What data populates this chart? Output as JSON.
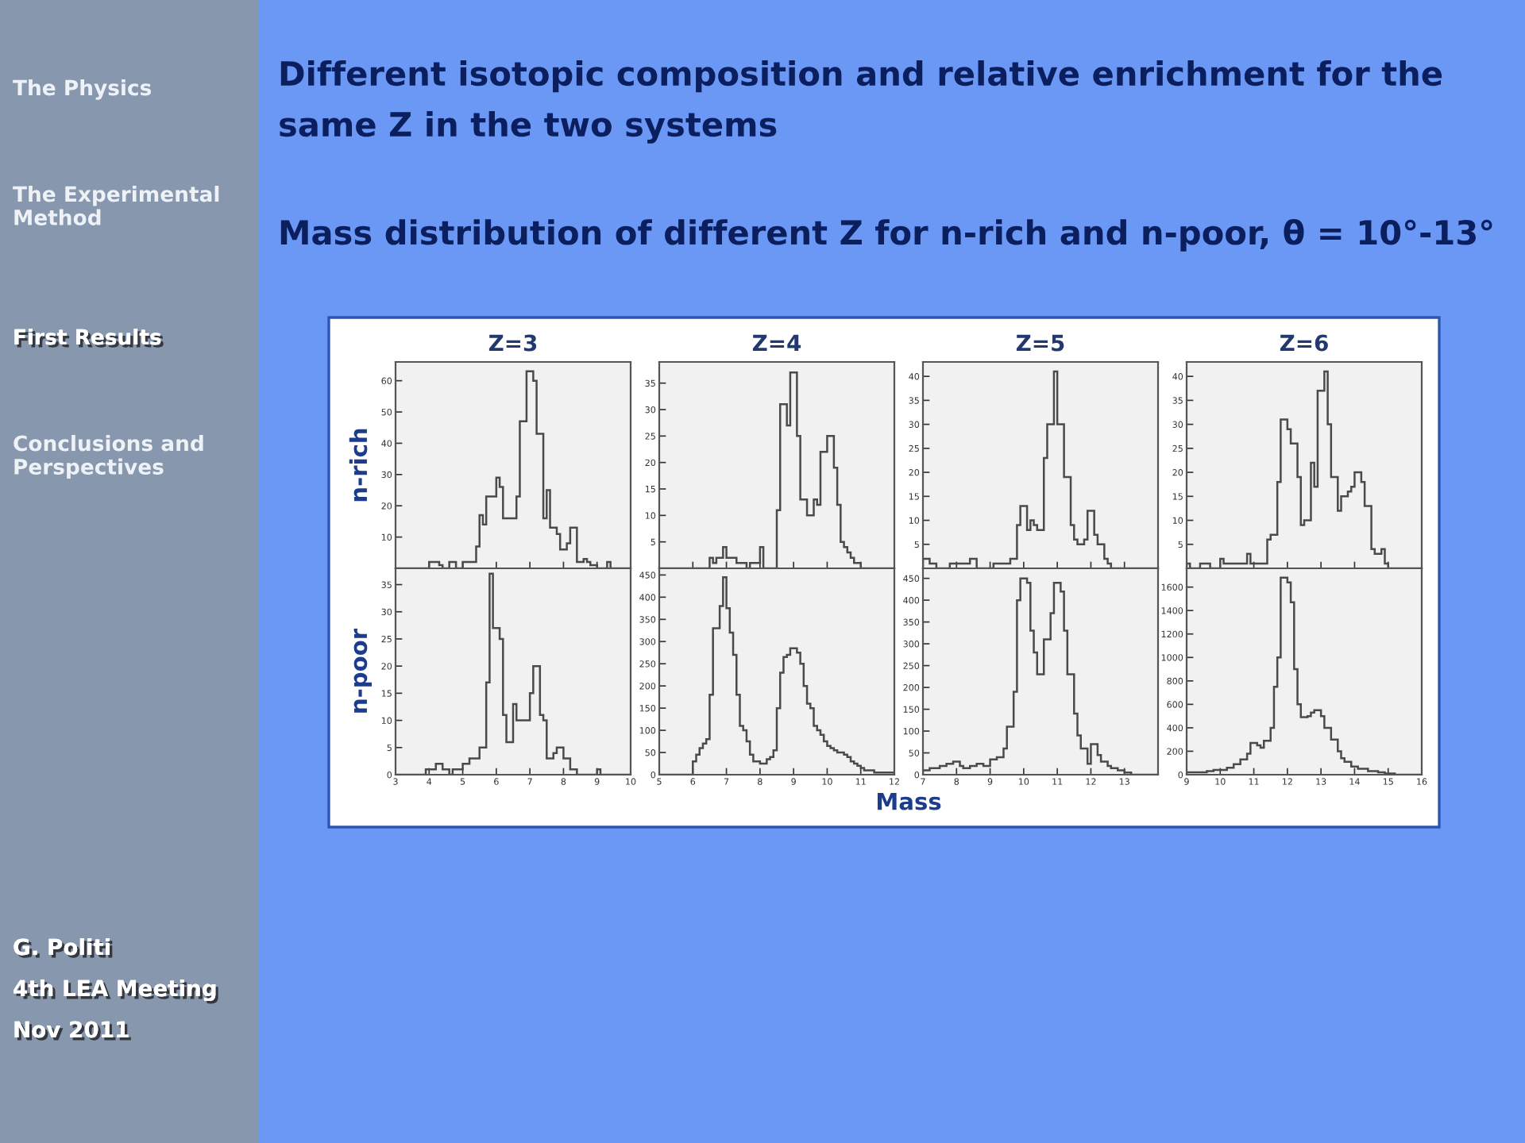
{
  "chart_data": [
    {
      "type": "histogram",
      "title": "Z=3",
      "ylabel": "n-rich",
      "color": "#4a4a4a",
      "tick_labels": "y",
      "xlim": [
        3,
        10
      ],
      "xticks": [
        3,
        4,
        5,
        6,
        7,
        8,
        9,
        10
      ],
      "ylim": [
        0,
        66
      ],
      "yticks": [
        10,
        20,
        30,
        40,
        50,
        60
      ],
      "annotations": [
        "Different isotopic composition and relative enrichment for the same Z in the two systems",
        "Mass distribution of different Z for n-rich and n-poor, θ = 10°-13°",
        "The Physics",
        "The Experimental Method",
        "First Results",
        "Conclusions and Perspectives",
        "G. Politi",
        "4th LEA Meeting",
        "Nov 2011"
      ],
      "bins": [
        3,
        3.1,
        3.2,
        3.3,
        3.4,
        3.5,
        3.6,
        3.7,
        3.8,
        3.9,
        4,
        4.1,
        4.2,
        4.3,
        4.4,
        4.5,
        4.6,
        4.7,
        4.8,
        4.9,
        5,
        5.1,
        5.2,
        5.3,
        5.4,
        5.5,
        5.6,
        5.7,
        5.8,
        5.9,
        6,
        6.1,
        6.2,
        6.3,
        6.4,
        6.5,
        6.6,
        6.7,
        6.8,
        6.9,
        7,
        7.1,
        7.2,
        7.3,
        7.4,
        7.5,
        7.6,
        7.7,
        7.8,
        7.9,
        8,
        8.1,
        8.2,
        8.3,
        8.4,
        8.5,
        8.6,
        8.7,
        8.8,
        8.9,
        9,
        9.1,
        9.2,
        9.3,
        9.4,
        9.5,
        9.6,
        9.7,
        9.8,
        9.9,
        10
      ],
      "values": [
        0,
        0,
        0,
        0,
        0,
        0,
        0,
        0,
        0,
        0,
        2,
        2,
        2,
        1,
        0,
        0,
        2,
        2,
        0,
        0,
        2,
        2,
        2,
        2,
        7,
        17,
        14,
        23,
        23,
        23,
        29,
        26,
        16,
        16,
        16,
        16,
        23,
        47,
        47,
        63,
        63,
        60,
        43,
        43,
        16,
        25,
        13,
        13,
        11,
        6,
        6,
        8,
        13,
        13,
        2,
        2,
        3,
        2,
        1,
        1,
        0,
        0,
        0,
        2,
        0,
        0,
        0,
        0,
        0,
        0
      ]
    },
    {
      "type": "histogram",
      "title": "Z=4",
      "color": "#4a4a4a",
      "tick_labels": "y",
      "xlim": [
        5,
        12
      ],
      "xticks": [
        5,
        6,
        7,
        8,
        9,
        10,
        11,
        12
      ],
      "ylim": [
        0,
        39
      ],
      "yticks": [
        5,
        10,
        15,
        20,
        25,
        30,
        35
      ],
      "bins": [
        5,
        5.1,
        5.2,
        5.3,
        5.4,
        5.5,
        5.6,
        5.7,
        5.8,
        5.9,
        6,
        6.1,
        6.2,
        6.3,
        6.4,
        6.5,
        6.6,
        6.7,
        6.8,
        6.9,
        7,
        7.1,
        7.2,
        7.3,
        7.4,
        7.5,
        7.6,
        7.7,
        7.8,
        7.9,
        8,
        8.1,
        8.2,
        8.3,
        8.4,
        8.5,
        8.6,
        8.7,
        8.8,
        8.9,
        9,
        9.1,
        9.2,
        9.3,
        9.4,
        9.5,
        9.6,
        9.7,
        9.8,
        9.9,
        10,
        10.1,
        10.2,
        10.3,
        10.4,
        10.5,
        10.6,
        10.7,
        10.8,
        10.9,
        11,
        11.1,
        11.2,
        11.3,
        11.4,
        11.5,
        11.6,
        11.7,
        11.8,
        11.9,
        12
      ],
      "values": [
        0,
        0,
        0,
        0,
        0,
        0,
        0,
        0,
        0,
        0,
        0,
        0,
        0,
        0,
        0,
        2,
        1,
        2,
        2,
        4,
        2,
        2,
        2,
        1,
        1,
        1,
        0,
        1,
        1,
        1,
        4,
        0,
        0,
        0,
        0,
        11,
        31,
        31,
        27,
        37,
        37,
        25,
        13,
        13,
        10,
        10,
        13,
        12,
        22,
        22,
        25,
        25,
        19,
        12,
        5,
        4,
        3,
        2,
        1,
        1,
        0,
        0,
        0,
        0,
        0,
        0,
        0,
        0,
        0,
        0
      ]
    },
    {
      "type": "histogram",
      "title": "Z=5",
      "color": "#4a4a4a",
      "tick_labels": "y",
      "xlim": [
        7,
        14
      ],
      "xticks": [
        7,
        8,
        9,
        10,
        11,
        12,
        13,
        {
          "value": 14,
          "label": null
        }
      ],
      "ylim": [
        0,
        43
      ],
      "yticks": [
        5,
        10,
        15,
        20,
        25,
        30,
        35,
        40
      ],
      "bins": [
        7,
        7.1,
        7.2,
        7.3,
        7.4,
        7.5,
        7.6,
        7.7,
        7.8,
        7.9,
        8,
        8.1,
        8.2,
        8.3,
        8.4,
        8.5,
        8.6,
        8.7,
        8.8,
        8.9,
        9,
        9.1,
        9.2,
        9.3,
        9.4,
        9.5,
        9.6,
        9.7,
        9.8,
        9.9,
        10,
        10.1,
        10.2,
        10.3,
        10.4,
        10.5,
        10.6,
        10.7,
        10.8,
        10.9,
        11,
        11.1,
        11.2,
        11.3,
        11.4,
        11.5,
        11.6,
        11.7,
        11.8,
        11.9,
        12,
        12.1,
        12.2,
        12.3,
        12.4,
        12.5,
        12.6,
        12.7,
        12.8,
        12.9,
        13,
        13.1,
        13.2,
        13.3,
        13.4,
        13.5,
        13.6,
        13.7,
        13.8,
        13.9,
        14
      ],
      "values": [
        2,
        2,
        1,
        1,
        0,
        0,
        0,
        0,
        1,
        1,
        1,
        1,
        1,
        1,
        2,
        2,
        0,
        0,
        0,
        0,
        0,
        1,
        1,
        1,
        1,
        1,
        2,
        2,
        9,
        13,
        13,
        8,
        10,
        9,
        8,
        8,
        23,
        30,
        30,
        41,
        30,
        30,
        19,
        19,
        9,
        6,
        5,
        5,
        6,
        12,
        12,
        7,
        5,
        5,
        2,
        1,
        0,
        0,
        0,
        0,
        0,
        0,
        0,
        0,
        0,
        0,
        0,
        0,
        0,
        0
      ]
    },
    {
      "type": "histogram",
      "title": "Z=6",
      "color": "#4a4a4a",
      "tick_labels": "y",
      "xlim": [
        9,
        16
      ],
      "xticks": [
        9,
        10,
        11,
        12,
        13,
        14,
        15,
        16
      ],
      "ylim": [
        0,
        43
      ],
      "yticks": [
        5,
        10,
        15,
        20,
        25,
        30,
        35,
        40
      ],
      "bins": [
        9,
        9.1,
        9.2,
        9.3,
        9.4,
        9.5,
        9.6,
        9.7,
        9.8,
        9.9,
        10,
        10.1,
        10.2,
        10.3,
        10.4,
        10.5,
        10.6,
        10.7,
        10.8,
        10.9,
        11,
        11.1,
        11.2,
        11.3,
        11.4,
        11.5,
        11.6,
        11.7,
        11.8,
        11.9,
        12,
        12.1,
        12.2,
        12.3,
        12.4,
        12.5,
        12.6,
        12.7,
        12.8,
        12.9,
        13,
        13.1,
        13.2,
        13.3,
        13.4,
        13.5,
        13.6,
        13.7,
        13.8,
        13.9,
        14,
        14.1,
        14.2,
        14.3,
        14.4,
        14.5,
        14.6,
        14.7,
        14.8,
        14.9,
        15,
        15.1,
        15.2,
        15.3,
        15.4,
        15.5,
        15.6,
        15.7,
        15.8,
        15.9,
        16
      ],
      "values": [
        1,
        0,
        0,
        0,
        1,
        1,
        1,
        0,
        0,
        0,
        2,
        1,
        1,
        1,
        1,
        1,
        1,
        1,
        3,
        1,
        1,
        1,
        1,
        1,
        6,
        7,
        7,
        18,
        31,
        31,
        29,
        26,
        26,
        19,
        9,
        10,
        10,
        22,
        17,
        37,
        37,
        41,
        30,
        19,
        19,
        12,
        15,
        15,
        16,
        17,
        20,
        20,
        18,
        13,
        13,
        4,
        3,
        3,
        4,
        1,
        0,
        0,
        0,
        0,
        0,
        0,
        0,
        0,
        0,
        0
      ]
    },
    {
      "type": "histogram",
      "ylabel": "n-poor",
      "color": "#4a4a4a",
      "xlim": [
        3,
        10
      ],
      "xticks": [
        3,
        4,
        5,
        6,
        7,
        8,
        9,
        10
      ],
      "ylim": [
        0,
        38
      ],
      "yticks": [
        0,
        5,
        10,
        15,
        20,
        25,
        30,
        35
      ],
      "bins": [
        3,
        3.1,
        3.2,
        3.3,
        3.4,
        3.5,
        3.6,
        3.7,
        3.8,
        3.9,
        4,
        4.1,
        4.2,
        4.3,
        4.4,
        4.5,
        4.6,
        4.7,
        4.8,
        4.9,
        5,
        5.1,
        5.2,
        5.3,
        5.4,
        5.5,
        5.6,
        5.7,
        5.8,
        5.9,
        6,
        6.1,
        6.2,
        6.3,
        6.4,
        6.5,
        6.6,
        6.7,
        6.8,
        6.9,
        7,
        7.1,
        7.2,
        7.3,
        7.4,
        7.5,
        7.6,
        7.7,
        7.8,
        7.9,
        8,
        8.1,
        8.2,
        8.3,
        8.4,
        8.5,
        8.6,
        8.7,
        8.8,
        8.9,
        9,
        9.1,
        9.2,
        9.3,
        9.4,
        9.5,
        9.6,
        9.7,
        9.8,
        9.9,
        10
      ],
      "values": [
        0,
        0,
        0,
        0,
        0,
        0,
        0,
        0,
        0,
        1,
        1,
        1,
        2,
        2,
        1,
        1,
        0,
        1,
        1,
        1,
        2,
        2,
        3,
        3,
        3,
        5,
        5,
        17,
        37,
        27,
        27,
        25,
        11,
        6,
        6,
        13,
        10,
        10,
        10,
        10,
        15,
        20,
        20,
        11,
        10,
        3,
        3,
        4,
        5,
        5,
        3,
        3,
        1,
        1,
        0,
        0,
        0,
        0,
        0,
        0,
        1,
        0,
        0,
        0,
        0,
        0,
        0,
        0,
        0,
        0
      ]
    },
    {
      "type": "histogram",
      "xlabel": "Mass",
      "color": "#4a4a4a",
      "xlim": [
        5,
        12
      ],
      "xticks": [
        5,
        6,
        7,
        8,
        9,
        10,
        11,
        12
      ],
      "ylim": [
        0,
        465
      ],
      "yticks": [
        0,
        50,
        100,
        150,
        200,
        250,
        300,
        350,
        400,
        450
      ],
      "bins": [
        5,
        5.1,
        5.2,
        5.3,
        5.4,
        5.5,
        5.6,
        5.7,
        5.8,
        5.9,
        6,
        6.1,
        6.2,
        6.3,
        6.4,
        6.5,
        6.6,
        6.7,
        6.8,
        6.9,
        7,
        7.1,
        7.2,
        7.3,
        7.4,
        7.5,
        7.6,
        7.7,
        7.8,
        7.9,
        8,
        8.1,
        8.2,
        8.3,
        8.4,
        8.5,
        8.6,
        8.7,
        8.8,
        8.9,
        9,
        9.1,
        9.2,
        9.3,
        9.4,
        9.5,
        9.6,
        9.7,
        9.8,
        9.9,
        10,
        10.1,
        10.2,
        10.3,
        10.4,
        10.5,
        10.6,
        10.7,
        10.8,
        10.9,
        11,
        11.1,
        11.2,
        11.3,
        11.4,
        11.5,
        11.6,
        11.7,
        11.8,
        11.9,
        12
      ],
      "values": [
        0,
        0,
        0,
        0,
        0,
        0,
        0,
        0,
        0,
        0,
        30,
        45,
        60,
        70,
        80,
        180,
        330,
        330,
        380,
        445,
        375,
        320,
        270,
        180,
        110,
        100,
        75,
        45,
        30,
        30,
        25,
        25,
        35,
        40,
        55,
        150,
        230,
        265,
        270,
        285,
        285,
        275,
        250,
        200,
        160,
        150,
        110,
        100,
        90,
        75,
        65,
        60,
        55,
        50,
        50,
        45,
        40,
        30,
        25,
        20,
        15,
        10,
        10,
        10,
        5,
        5,
        5,
        5,
        5,
        5
      ]
    },
    {
      "type": "histogram",
      "color": "#4a4a4a",
      "xlim": [
        7,
        14
      ],
      "xticks": [
        7,
        8,
        9,
        10,
        11,
        12,
        13,
        {
          "value": 14,
          "label": null
        }
      ],
      "ylim": [
        0,
        473
      ],
      "yticks": [
        0,
        50,
        100,
        150,
        200,
        250,
        300,
        350,
        400,
        450
      ],
      "bins": [
        7,
        7.1,
        7.2,
        7.3,
        7.4,
        7.5,
        7.6,
        7.7,
        7.8,
        7.9,
        8,
        8.1,
        8.2,
        8.3,
        8.4,
        8.5,
        8.6,
        8.7,
        8.8,
        8.9,
        9,
        9.1,
        9.2,
        9.3,
        9.4,
        9.5,
        9.6,
        9.7,
        9.8,
        9.9,
        10,
        10.1,
        10.2,
        10.3,
        10.4,
        10.5,
        10.6,
        10.7,
        10.8,
        10.9,
        11,
        11.1,
        11.2,
        11.3,
        11.4,
        11.5,
        11.6,
        11.7,
        11.8,
        11.9,
        12,
        12.1,
        12.2,
        12.3,
        12.4,
        12.5,
        12.6,
        12.7,
        12.8,
        12.9,
        13,
        13.1,
        13.2,
        13.3,
        13.4,
        13.5,
        13.6,
        13.7,
        13.8,
        13.9,
        14
      ],
      "values": [
        10,
        10,
        15,
        15,
        15,
        20,
        20,
        25,
        25,
        30,
        30,
        20,
        15,
        15,
        20,
        20,
        25,
        25,
        20,
        20,
        35,
        35,
        40,
        40,
        60,
        110,
        110,
        190,
        400,
        450,
        450,
        440,
        330,
        280,
        230,
        230,
        310,
        310,
        370,
        440,
        440,
        420,
        330,
        230,
        230,
        140,
        90,
        60,
        60,
        25,
        70,
        70,
        45,
        30,
        30,
        20,
        15,
        15,
        10,
        10,
        5,
        5,
        0,
        0,
        0,
        0,
        0,
        0,
        0,
        0
      ]
    },
    {
      "type": "histogram",
      "color": "#4a4a4a",
      "xlim": [
        9,
        16
      ],
      "xticks": [
        9,
        10,
        11,
        12,
        13,
        14,
        15,
        16
      ],
      "ylim": [
        0,
        1760
      ],
      "yticks": [
        0,
        200,
        400,
        600,
        800,
        1000,
        1200,
        1400,
        1600
      ],
      "bins": [
        9,
        9.1,
        9.2,
        9.3,
        9.4,
        9.5,
        9.6,
        9.7,
        9.8,
        9.9,
        10,
        10.1,
        10.2,
        10.3,
        10.4,
        10.5,
        10.6,
        10.7,
        10.8,
        10.9,
        11,
        11.1,
        11.2,
        11.3,
        11.4,
        11.5,
        11.6,
        11.7,
        11.8,
        11.9,
        12,
        12.1,
        12.2,
        12.3,
        12.4,
        12.5,
        12.6,
        12.7,
        12.8,
        12.9,
        13,
        13.1,
        13.2,
        13.3,
        13.4,
        13.5,
        13.6,
        13.7,
        13.8,
        13.9,
        14,
        14.1,
        14.2,
        14.3,
        14.4,
        14.5,
        14.6,
        14.7,
        14.8,
        14.9,
        15,
        15.1,
        15.2,
        15.3,
        15.4,
        15.5,
        15.6,
        15.7,
        15.8,
        15.9,
        16
      ],
      "values": [
        20,
        20,
        20,
        20,
        20,
        20,
        30,
        30,
        40,
        40,
        40,
        40,
        60,
        60,
        90,
        90,
        130,
        130,
        180,
        270,
        270,
        250,
        230,
        290,
        290,
        400,
        750,
        1000,
        1680,
        1680,
        1640,
        1470,
        900,
        600,
        490,
        490,
        500,
        530,
        550,
        550,
        500,
        400,
        400,
        300,
        300,
        200,
        140,
        110,
        110,
        70,
        70,
        50,
        50,
        50,
        30,
        30,
        30,
        20,
        20,
        10,
        10,
        10,
        0,
        0,
        0,
        0,
        0,
        0,
        0,
        0
      ]
    }
  ]
}
